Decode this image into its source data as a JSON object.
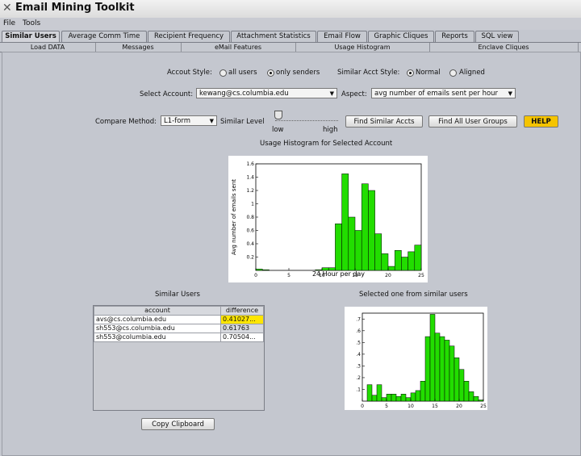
{
  "window": {
    "title": "Email Mining Toolkit",
    "icon": "x-logo-icon"
  },
  "menu": [
    "File",
    "Tools"
  ],
  "tabs": [
    "Similar Users",
    "Average Comm Time",
    "Recipient Frequency",
    "Attachment Statistics",
    "Email Flow",
    "Graphic Cliques",
    "Reports",
    "SQL view"
  ],
  "active_tab": "Similar Users",
  "subtabs": [
    "Load DATA",
    "Messages",
    "eMail Features",
    "Usage Histogram",
    "Enclave Cliques"
  ],
  "account_style": {
    "label": "Accout Style:",
    "options": [
      "all users",
      "only senders"
    ],
    "selected": "only senders"
  },
  "similar_style": {
    "label": "Similar Acct Style:",
    "options": [
      "Normal",
      "Aligned"
    ],
    "selected": "Normal"
  },
  "select_account": {
    "label": "Select Account:",
    "value": "kewang@cs.columbia.edu"
  },
  "aspect": {
    "label": "Aspect:",
    "value": "avg number of emails sent per hour"
  },
  "compare": {
    "label": "Compare Method:",
    "value": "L1-form"
  },
  "similar_level": {
    "label": "Similar Level",
    "low": "low",
    "high": "high",
    "value": 0.0
  },
  "buttons": {
    "find_similar": "Find Similar Accts",
    "find_groups": "Find All User Groups",
    "help": "HELP",
    "copy": "Copy Clipboard"
  },
  "usage_title": "Usage Histogram for Selected Account",
  "similar_users_title": "Similar Users",
  "selected_title": "Selected one from similar users",
  "table": {
    "headers": [
      "account",
      "difference"
    ],
    "rows": [
      [
        "avs@cs.columbia.edu",
        "0.41027..."
      ],
      [
        "sh553@cs.columbia.edu",
        "0.61763"
      ],
      [
        "sh553@columbia.edu",
        "0.70504..."
      ]
    ],
    "highlight_row": 0
  },
  "colors": {
    "bar": "#22dd00",
    "highlight": "#ffe600",
    "help": "#f5c400"
  },
  "chart_data": [
    {
      "type": "bar",
      "title": "Usage Histogram for Selected Account",
      "xlabel": "24 Hour per day",
      "ylabel": "Avg number of emails sent",
      "xlim": [
        0,
        25
      ],
      "ylim": [
        0,
        1.6
      ],
      "xticks": [
        0,
        5,
        10,
        15,
        20,
        25
      ],
      "yticks": [
        0.2,
        0.4,
        0.6,
        0.8,
        1.0,
        1.2,
        1.4,
        1.6
      ],
      "x": [
        0,
        1,
        2,
        3,
        4,
        5,
        6,
        7,
        8,
        9,
        10,
        11,
        12,
        13,
        14,
        15,
        16,
        17,
        18,
        19,
        20,
        21,
        22,
        23,
        24
      ],
      "values": [
        0.02,
        0.01,
        0,
        0,
        0,
        0,
        0,
        0,
        0,
        0.01,
        0.04,
        0.04,
        0.7,
        1.45,
        0.8,
        0.6,
        1.3,
        1.2,
        0.55,
        0.25,
        0.06,
        0.3,
        0.2,
        0.28,
        0.38
      ]
    },
    {
      "type": "bar",
      "title": "Selected one from similar users",
      "xlim": [
        0,
        25
      ],
      "ylim": [
        0,
        0.75
      ],
      "xticks": [
        0,
        5,
        10,
        15,
        20,
        25
      ],
      "yticks": [
        0.1,
        0.2,
        0.3,
        0.4,
        0.5,
        0.6,
        0.7
      ],
      "x": [
        0,
        1,
        2,
        3,
        4,
        5,
        6,
        7,
        8,
        9,
        10,
        11,
        12,
        13,
        14,
        15,
        16,
        17,
        18,
        19,
        20,
        21,
        22,
        23,
        24
      ],
      "values": [
        0,
        0.14,
        0.05,
        0.14,
        0.03,
        0.06,
        0.06,
        0.04,
        0.06,
        0.03,
        0.07,
        0.09,
        0.17,
        0.55,
        0.74,
        0.58,
        0.55,
        0.52,
        0.47,
        0.37,
        0.27,
        0.17,
        0.08,
        0.04,
        0.01
      ]
    }
  ]
}
